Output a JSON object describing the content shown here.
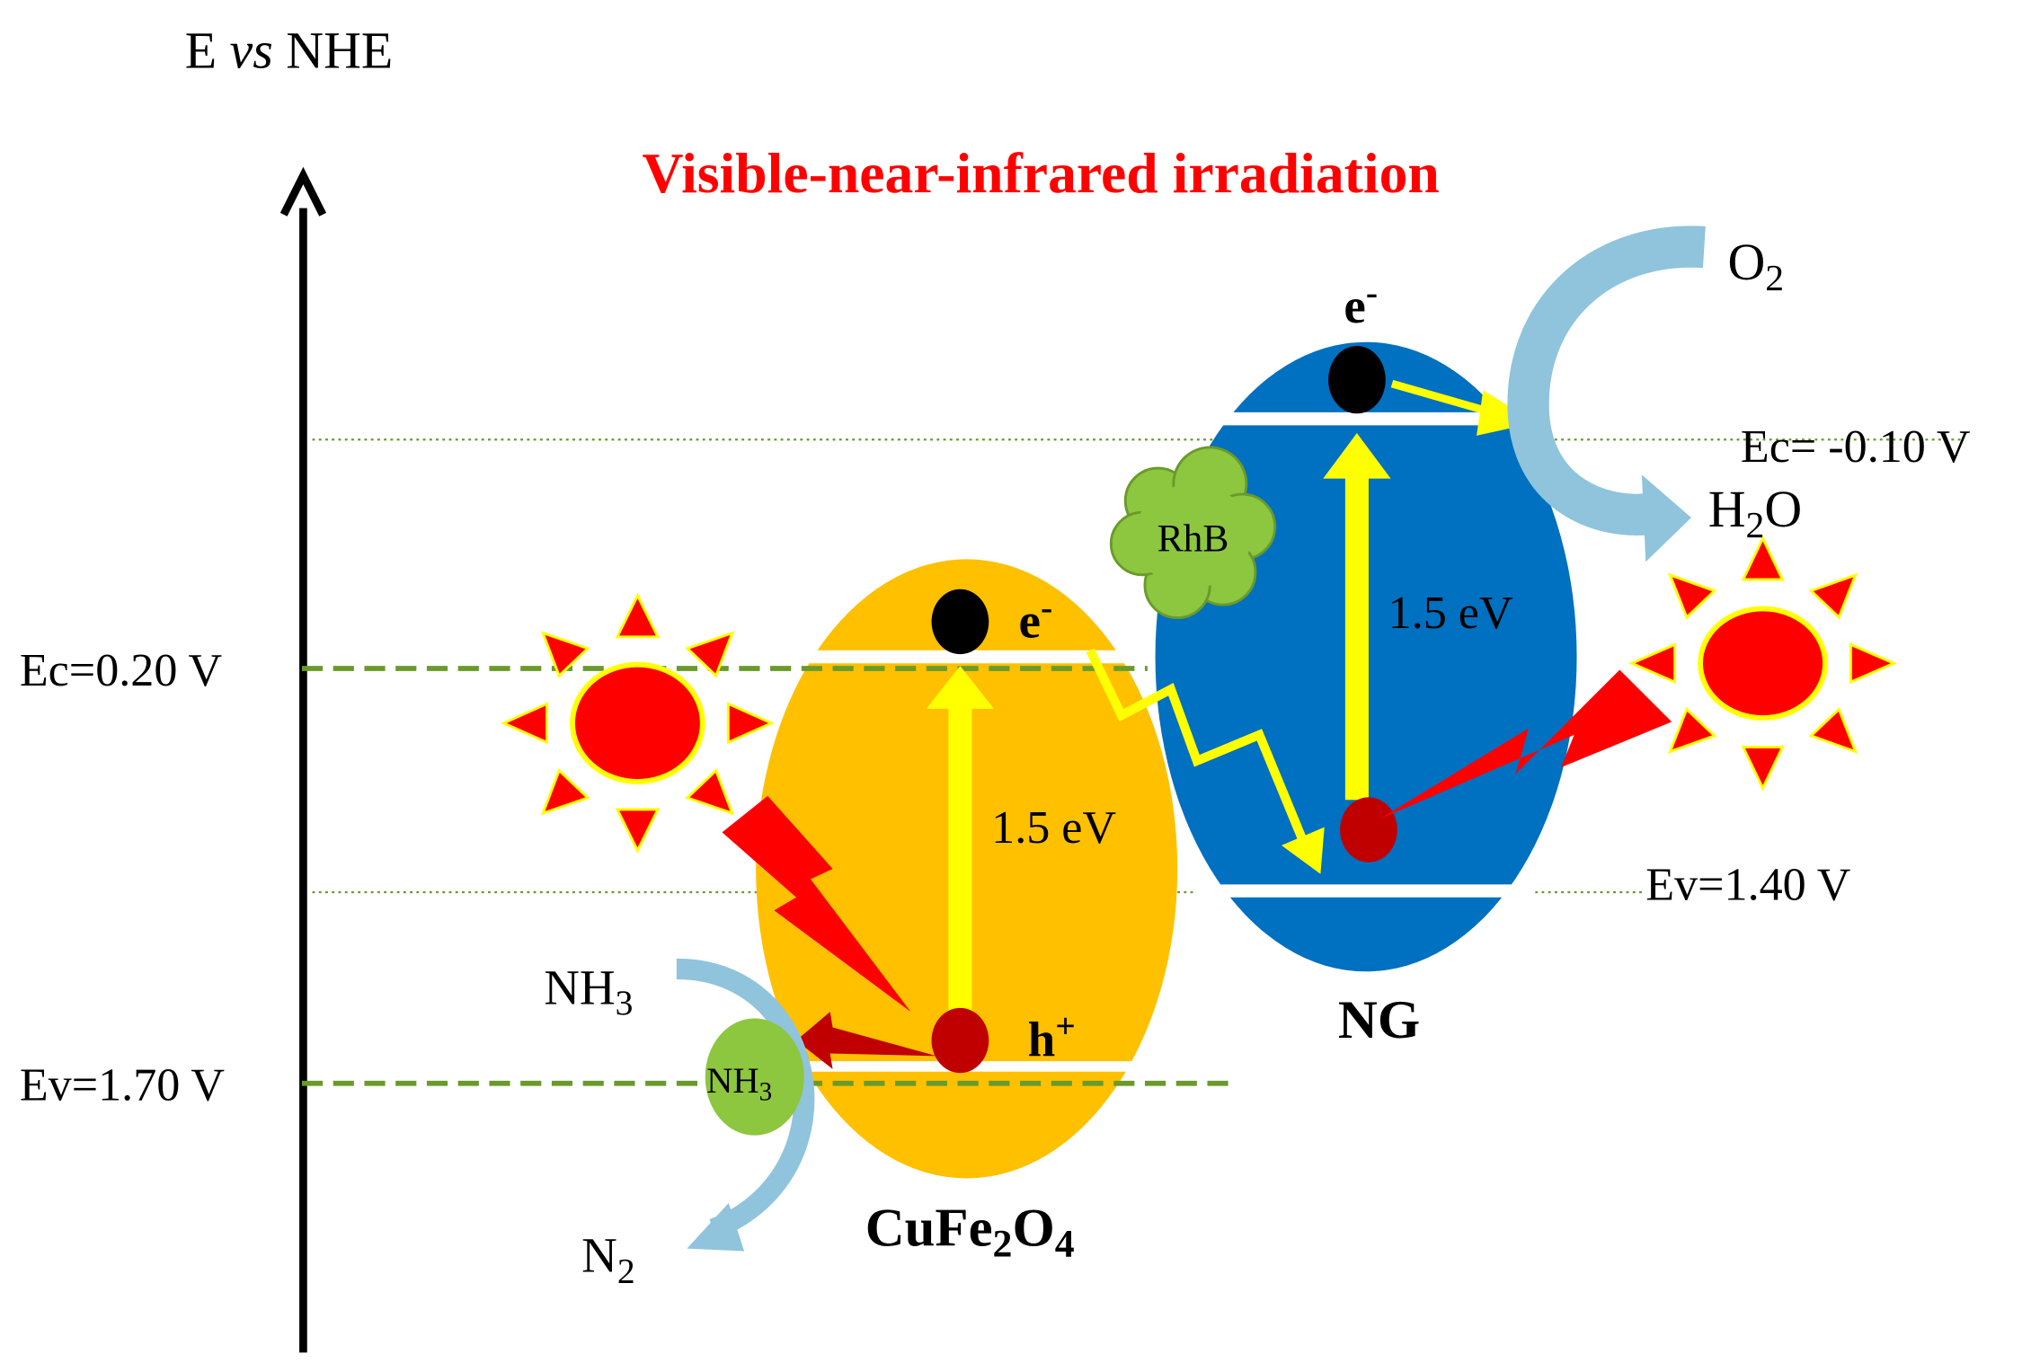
{
  "axis_label": {
    "symbol": "E",
    "italic": "vs",
    "reference": "NHE"
  },
  "title": "Visible-near-infrared irradiation",
  "levels": {
    "cufe2o4_ec": "Ec=0.20 V",
    "cufe2o4_ev": "Ev=1.70 V",
    "ng_ec": "Ec= -0.10 V",
    "ng_ev": "Ev=1.40 V"
  },
  "cufe2o4": {
    "name_parts": [
      "CuFe",
      "2",
      "O",
      "4"
    ],
    "band_gap": "1.5 eV",
    "electron": {
      "base": "e",
      "sup": "-"
    },
    "hole": {
      "base": "h",
      "sup": "+"
    }
  },
  "ng": {
    "name": "NG",
    "band_gap": "1.5 eV",
    "electron": {
      "base": "e",
      "sup": "-"
    }
  },
  "pollutant": "RhB",
  "species": {
    "nh3_gas": {
      "base": "NH",
      "sub": "3"
    },
    "nh3_adsorbed": {
      "base": "NH",
      "sub": "3"
    },
    "n2": {
      "base": "N",
      "sub": "2"
    },
    "o2": {
      "base": "O",
      "sub": "2"
    },
    "h2o": {
      "parts": [
        "H",
        "2",
        "O"
      ]
    }
  }
}
